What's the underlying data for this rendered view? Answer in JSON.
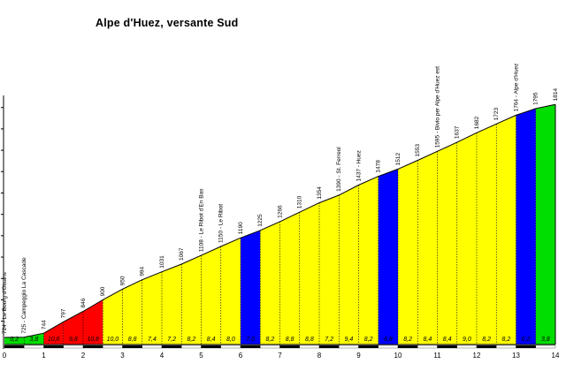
{
  "chart_data": {
    "type": "area",
    "title": "Alpe d'Huez, versante Sud",
    "xlabel": "",
    "ylabel": "",
    "xlim": [
      0,
      14
    ],
    "ylim": [
      700,
      1860
    ],
    "x_ticks": [
      "0",
      "1",
      "2",
      "3",
      "4",
      "5",
      "6",
      "7",
      "8",
      "9",
      "10",
      "11",
      "12",
      "13",
      "14"
    ],
    "profile": [
      {
        "x": 0.0,
        "y": 724
      },
      {
        "x": 0.5,
        "y": 725
      },
      {
        "x": 1.0,
        "y": 744
      },
      {
        "x": 1.5,
        "y": 797
      },
      {
        "x": 2.0,
        "y": 846
      },
      {
        "x": 2.5,
        "y": 900
      },
      {
        "x": 3.0,
        "y": 950
      },
      {
        "x": 3.5,
        "y": 994
      },
      {
        "x": 4.0,
        "y": 1031
      },
      {
        "x": 4.5,
        "y": 1067
      },
      {
        "x": 5.0,
        "y": 1108
      },
      {
        "x": 5.5,
        "y": 1150
      },
      {
        "x": 6.0,
        "y": 1190
      },
      {
        "x": 6.5,
        "y": 1225
      },
      {
        "x": 7.0,
        "y": 1266
      },
      {
        "x": 7.5,
        "y": 1310
      },
      {
        "x": 8.0,
        "y": 1354
      },
      {
        "x": 8.5,
        "y": 1390
      },
      {
        "x": 9.0,
        "y": 1437
      },
      {
        "x": 9.5,
        "y": 1478
      },
      {
        "x": 10.0,
        "y": 1512
      },
      {
        "x": 10.5,
        "y": 1553
      },
      {
        "x": 11.0,
        "y": 1595
      },
      {
        "x": 11.5,
        "y": 1637
      },
      {
        "x": 12.0,
        "y": 1682
      },
      {
        "x": 12.5,
        "y": 1723
      },
      {
        "x": 13.0,
        "y": 1764
      },
      {
        "x": 13.5,
        "y": 1795
      },
      {
        "x": 14.0,
        "y": 1814
      }
    ],
    "altitude_labels": [
      {
        "x": 1.0,
        "text": "744"
      },
      {
        "x": 1.5,
        "text": "797"
      },
      {
        "x": 2.0,
        "text": "846"
      },
      {
        "x": 2.5,
        "text": "900"
      },
      {
        "x": 3.0,
        "text": "950"
      },
      {
        "x": 3.5,
        "text": "994"
      },
      {
        "x": 4.0,
        "text": "1031"
      },
      {
        "x": 4.5,
        "text": "1067"
      },
      {
        "x": 6.0,
        "text": "1190"
      },
      {
        "x": 6.5,
        "text": "1225"
      },
      {
        "x": 7.0,
        "text": "1266"
      },
      {
        "x": 7.5,
        "text": "1310"
      },
      {
        "x": 8.0,
        "text": "1354"
      },
      {
        "x": 9.5,
        "text": "1478"
      },
      {
        "x": 10.0,
        "text": "1512"
      },
      {
        "x": 10.5,
        "text": "1553"
      },
      {
        "x": 11.5,
        "text": "1637"
      },
      {
        "x": 12.0,
        "text": "1682"
      },
      {
        "x": 12.5,
        "text": "1723"
      },
      {
        "x": 13.5,
        "text": "1795"
      },
      {
        "x": 14.0,
        "text": "1814"
      }
    ],
    "place_labels": [
      {
        "x": 0.0,
        "text": "724 - Le Bourg d'Oisans"
      },
      {
        "x": 0.5,
        "text": "725 - Campeggio La Cascade"
      },
      {
        "x": 5.0,
        "text": "1108 - Le Ribot d'En Bas"
      },
      {
        "x": 5.5,
        "text": "1150 - Le Ribot"
      },
      {
        "x": 8.5,
        "text": "1390 - St. Ferreol"
      },
      {
        "x": 9.0,
        "text": "1437 - Huez"
      },
      {
        "x": 11.0,
        "text": "1595 - Bivio per Alpe d'Huez est"
      },
      {
        "x": 13.0,
        "text": "1764 - Alpe d'Huez"
      }
    ],
    "segments": [
      {
        "x0": 0.0,
        "x1": 0.5,
        "color": "#00dd00",
        "grade": "0,2"
      },
      {
        "x0": 0.5,
        "x1": 1.0,
        "color": "#00dd00",
        "grade": "3,8"
      },
      {
        "x0": 1.0,
        "x1": 1.5,
        "color": "#ff0000",
        "grade": "10,6"
      },
      {
        "x0": 1.5,
        "x1": 2.0,
        "color": "#ff0000",
        "grade": "9,8"
      },
      {
        "x0": 2.0,
        "x1": 2.5,
        "color": "#ff0000",
        "grade": "10,8"
      },
      {
        "x0": 2.5,
        "x1": 3.0,
        "color": "#ffff00",
        "grade": "10,0"
      },
      {
        "x0": 3.0,
        "x1": 3.5,
        "color": "#ffff00",
        "grade": "8,8"
      },
      {
        "x0": 3.5,
        "x1": 4.0,
        "color": "#ffff00",
        "grade": "7,4"
      },
      {
        "x0": 4.0,
        "x1": 4.5,
        "color": "#ffff00",
        "grade": "7,2"
      },
      {
        "x0": 4.5,
        "x1": 5.0,
        "color": "#ffff00",
        "grade": "8,2"
      },
      {
        "x0": 5.0,
        "x1": 5.5,
        "color": "#ffff00",
        "grade": "8,4"
      },
      {
        "x0": 5.5,
        "x1": 6.0,
        "color": "#ffff00",
        "grade": "8,0"
      },
      {
        "x0": 6.0,
        "x1": 6.5,
        "color": "#0000ff",
        "grade": "7,0"
      },
      {
        "x0": 6.5,
        "x1": 7.0,
        "color": "#ffff00",
        "grade": "8,2"
      },
      {
        "x0": 7.0,
        "x1": 7.5,
        "color": "#ffff00",
        "grade": "8,8"
      },
      {
        "x0": 7.5,
        "x1": 8.0,
        "color": "#ffff00",
        "grade": "8,8"
      },
      {
        "x0": 8.0,
        "x1": 8.5,
        "color": "#ffff00",
        "grade": "7,2"
      },
      {
        "x0": 8.5,
        "x1": 9.0,
        "color": "#ffff00",
        "grade": "9,4"
      },
      {
        "x0": 9.0,
        "x1": 9.5,
        "color": "#ffff00",
        "grade": "8,2"
      },
      {
        "x0": 9.5,
        "x1": 10.0,
        "color": "#0000ff",
        "grade": "6,8"
      },
      {
        "x0": 10.0,
        "x1": 10.5,
        "color": "#ffff00",
        "grade": "8,2"
      },
      {
        "x0": 10.5,
        "x1": 11.0,
        "color": "#ffff00",
        "grade": "8,4"
      },
      {
        "x0": 11.0,
        "x1": 11.5,
        "color": "#ffff00",
        "grade": "8,4"
      },
      {
        "x0": 11.5,
        "x1": 12.0,
        "color": "#ffff00",
        "grade": "9,0"
      },
      {
        "x0": 12.0,
        "x1": 12.5,
        "color": "#ffff00",
        "grade": "8,2"
      },
      {
        "x0": 12.5,
        "x1": 13.0,
        "color": "#ffff00",
        "grade": "8,2"
      },
      {
        "x0": 13.0,
        "x1": 13.5,
        "color": "#0000ff",
        "grade": "6,2"
      },
      {
        "x0": 13.5,
        "x1": 14.0,
        "color": "#00dd00",
        "grade": "3,8"
      }
    ],
    "grid": true
  }
}
